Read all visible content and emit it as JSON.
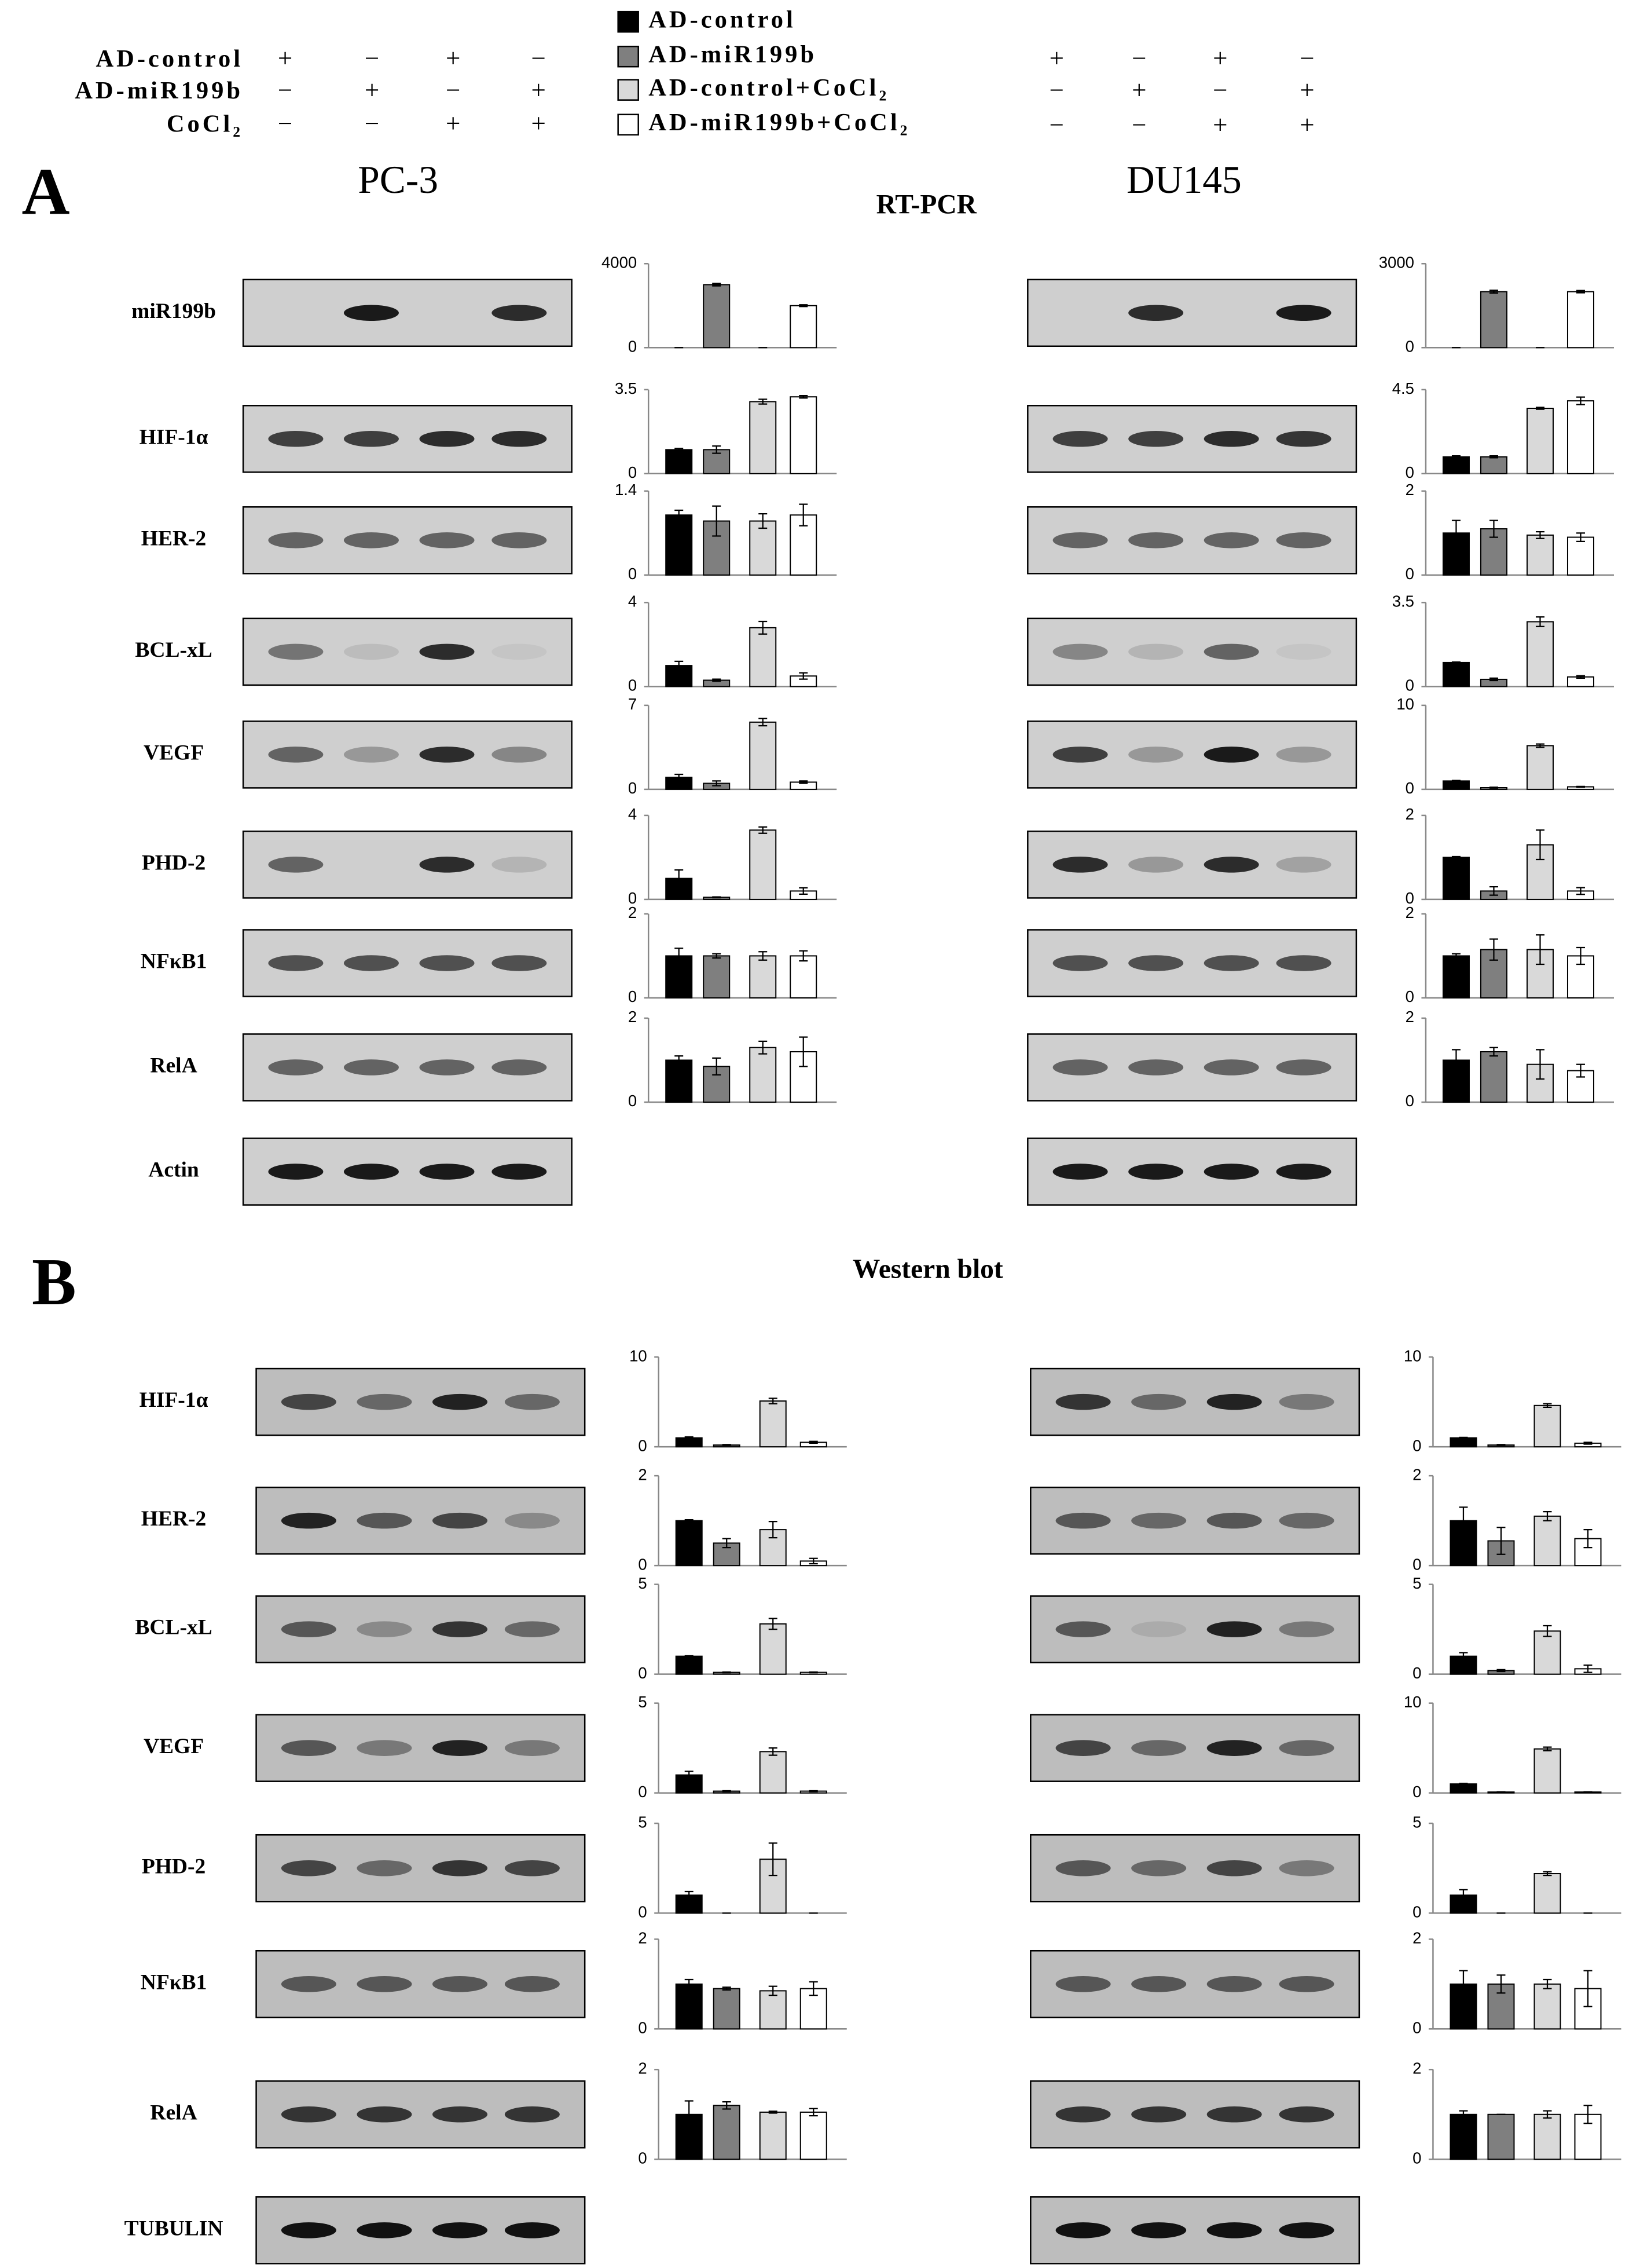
{
  "legend": {
    "entries": [
      {
        "name": "AD-control",
        "color": "#000000"
      },
      {
        "name": "AD-miR199b",
        "color": "#7f7f7f"
      },
      {
        "name": "AD-control+CoCl₂",
        "color": "#d9d9d9"
      },
      {
        "name": "AD-miR199b+CoCl₂",
        "color": "#ffffff"
      }
    ]
  },
  "treatments": {
    "rows": [
      {
        "label": "AD-control",
        "signs": [
          "+",
          "−",
          "+",
          "−"
        ]
      },
      {
        "label": "AD-miR199b",
        "signs": [
          "−",
          "+",
          "−",
          "+"
        ]
      },
      {
        "label": "CoCl₂",
        "signs": [
          "−",
          "−",
          "+",
          "+"
        ]
      }
    ]
  },
  "cell_lines": [
    "PC-3",
    "DU145"
  ],
  "panels": [
    {
      "letter": "A",
      "title": "RT-PCR",
      "rows": [
        "miR199b",
        "HIF-1α",
        "HER-2",
        "BCL-xL",
        "VEGF",
        "PHD-2",
        "NFκB1",
        "RelA",
        "Actin"
      ]
    },
    {
      "letter": "B",
      "title": "Western blot",
      "rows": [
        "HIF-1α",
        "HER-2",
        "BCL-xL",
        "VEGF",
        "PHD-2",
        "NFκB1",
        "RelA",
        "TUBULIN"
      ]
    }
  ],
  "chart_data": [
    {
      "type": "bar",
      "values": [
        0,
        3000,
        0,
        2000
      ],
      "errors": [
        0,
        60,
        0,
        40
      ],
      "ylim": [
        0,
        4000
      ],
      "yticks": [
        0,
        4000
      ]
    },
    {
      "type": "bar",
      "values": [
        0,
        2000,
        0,
        2000
      ],
      "errors": [
        0,
        50,
        0,
        40
      ],
      "ylim": [
        0,
        3000
      ],
      "yticks": [
        0,
        3000
      ]
    },
    {
      "type": "bar",
      "values": [
        1.0,
        1.0,
        3.0,
        3.2
      ],
      "errors": [
        0.05,
        0.15,
        0.1,
        0.05
      ],
      "ylim": [
        0,
        3.5
      ],
      "yticks": [
        0,
        3.5
      ]
    },
    {
      "type": "bar",
      "values": [
        0.9,
        0.9,
        3.5,
        3.9
      ],
      "errors": [
        0.05,
        0.05,
        0.05,
        0.2
      ],
      "ylim": [
        0,
        4.5
      ],
      "yticks": [
        0,
        4.5
      ]
    },
    {
      "type": "bar",
      "values": [
        1.0,
        0.9,
        0.9,
        1.0
      ],
      "errors": [
        0.08,
        0.25,
        0.12,
        0.18
      ],
      "ylim": [
        0,
        1.4
      ],
      "yticks": [
        0,
        1.4
      ]
    },
    {
      "type": "bar",
      "values": [
        1.0,
        1.1,
        0.95,
        0.9
      ],
      "errors": [
        0.3,
        0.2,
        0.08,
        0.1
      ],
      "ylim": [
        0,
        2
      ],
      "yticks": [
        0,
        2
      ]
    },
    {
      "type": "bar",
      "values": [
        1.0,
        0.3,
        2.8,
        0.5
      ],
      "errors": [
        0.2,
        0.05,
        0.3,
        0.15
      ],
      "ylim": [
        0,
        4
      ],
      "yticks": [
        0,
        4
      ]
    },
    {
      "type": "bar",
      "values": [
        1.0,
        0.3,
        2.7,
        0.4
      ],
      "errors": [
        0.02,
        0.05,
        0.2,
        0.05
      ],
      "ylim": [
        0,
        3.5
      ],
      "yticks": [
        0,
        3.5
      ]
    },
    {
      "type": "bar",
      "values": [
        1.0,
        0.5,
        5.6,
        0.6
      ],
      "errors": [
        0.25,
        0.2,
        0.3,
        0.1
      ],
      "ylim": [
        0,
        7
      ],
      "yticks": [
        0,
        7
      ]
    },
    {
      "type": "bar",
      "values": [
        1.0,
        0.2,
        5.2,
        0.3
      ],
      "errors": [
        0.05,
        0.05,
        0.2,
        0.05
      ],
      "ylim": [
        0,
        10
      ],
      "yticks": [
        0,
        10
      ]
    },
    {
      "type": "bar",
      "values": [
        1.0,
        0.1,
        3.3,
        0.4
      ],
      "errors": [
        0.4,
        0.02,
        0.15,
        0.15
      ],
      "ylim": [
        0,
        4
      ],
      "yticks": [
        0,
        4
      ]
    },
    {
      "type": "bar",
      "values": [
        1.0,
        0.2,
        1.3,
        0.2
      ],
      "errors": [
        0.02,
        0.1,
        0.35,
        0.08
      ],
      "ylim": [
        0,
        2
      ],
      "yticks": [
        0,
        2
      ]
    },
    {
      "type": "bar",
      "values": [
        1.0,
        1.0,
        1.0,
        1.0
      ],
      "errors": [
        0.18,
        0.05,
        0.1,
        0.12
      ],
      "ylim": [
        0,
        2
      ],
      "yticks": [
        0,
        2
      ]
    },
    {
      "type": "bar",
      "values": [
        1.0,
        1.15,
        1.15,
        1.0
      ],
      "errors": [
        0.05,
        0.25,
        0.35,
        0.2
      ],
      "ylim": [
        0,
        2
      ],
      "yticks": [
        0,
        2
      ]
    },
    {
      "type": "bar",
      "values": [
        1.0,
        0.85,
        1.3,
        1.2
      ],
      "errors": [
        0.1,
        0.2,
        0.15,
        0.35
      ],
      "ylim": [
        0,
        2
      ],
      "yticks": [
        0,
        2
      ]
    },
    {
      "type": "bar",
      "values": [
        1.0,
        1.2,
        0.9,
        0.75
      ],
      "errors": [
        0.25,
        0.1,
        0.35,
        0.15
      ],
      "ylim": [
        0,
        2
      ],
      "yticks": [
        0,
        2
      ]
    },
    {
      "type": "bar",
      "values": [
        1.0,
        0.2,
        5.1,
        0.5
      ],
      "errors": [
        0.1,
        0.05,
        0.3,
        0.1
      ],
      "ylim": [
        0,
        10
      ],
      "yticks": [
        0,
        10
      ]
    },
    {
      "type": "bar",
      "values": [
        1.0,
        0.2,
        4.6,
        0.4
      ],
      "errors": [
        0.05,
        0.05,
        0.2,
        0.1
      ],
      "ylim": [
        0,
        10
      ],
      "yticks": [
        0,
        10
      ]
    },
    {
      "type": "bar",
      "values": [
        1.0,
        0.5,
        0.8,
        0.1
      ],
      "errors": [
        0.02,
        0.1,
        0.18,
        0.06
      ],
      "ylim": [
        0,
        2
      ],
      "yticks": [
        0,
        2
      ]
    },
    {
      "type": "bar",
      "values": [
        1.0,
        0.55,
        1.1,
        0.6
      ],
      "errors": [
        0.3,
        0.3,
        0.1,
        0.2
      ],
      "ylim": [
        0,
        2
      ],
      "yticks": [
        0,
        2
      ]
    },
    {
      "type": "bar",
      "values": [
        1.0,
        0.1,
        2.8,
        0.1
      ],
      "errors": [
        0.02,
        0.02,
        0.3,
        0.02
      ],
      "ylim": [
        0,
        5
      ],
      "yticks": [
        0,
        5
      ]
    },
    {
      "type": "bar",
      "values": [
        1.0,
        0.2,
        2.4,
        0.3
      ],
      "errors": [
        0.2,
        0.05,
        0.3,
        0.2
      ],
      "ylim": [
        0,
        5
      ],
      "yticks": [
        0,
        5
      ]
    },
    {
      "type": "bar",
      "values": [
        1.0,
        0.1,
        2.3,
        0.1
      ],
      "errors": [
        0.2,
        0.02,
        0.2,
        0.02
      ],
      "ylim": [
        0,
        5
      ],
      "yticks": [
        0,
        5
      ]
    },
    {
      "type": "bar",
      "values": [
        1.0,
        0.1,
        4.9,
        0.1
      ],
      "errors": [
        0.05,
        0.02,
        0.2,
        0.02
      ],
      "ylim": [
        0,
        10
      ],
      "yticks": [
        0,
        10
      ]
    },
    {
      "type": "bar",
      "values": [
        1.0,
        0,
        3.0,
        0
      ],
      "errors": [
        0.2,
        0,
        0.9,
        0
      ],
      "ylim": [
        0,
        5
      ],
      "yticks": [
        0,
        5
      ]
    },
    {
      "type": "bar",
      "values": [
        1.0,
        0,
        2.2,
        0
      ],
      "errors": [
        0.3,
        0,
        0.1,
        0
      ],
      "ylim": [
        0,
        5
      ],
      "yticks": [
        0,
        5
      ]
    },
    {
      "type": "bar",
      "values": [
        1.0,
        0.9,
        0.85,
        0.9
      ],
      "errors": [
        0.1,
        0.03,
        0.1,
        0.15
      ],
      "ylim": [
        0,
        2
      ],
      "yticks": [
        0,
        2
      ]
    },
    {
      "type": "bar",
      "values": [
        1.0,
        1.0,
        1.0,
        0.9
      ],
      "errors": [
        0.3,
        0.2,
        0.1,
        0.4
      ],
      "ylim": [
        0,
        2
      ],
      "yticks": [
        0,
        2
      ]
    },
    {
      "type": "bar",
      "values": [
        1.0,
        1.2,
        1.05,
        1.05
      ],
      "errors": [
        0.3,
        0.08,
        0.02,
        0.08
      ],
      "ylim": [
        0,
        2
      ],
      "yticks": [
        0,
        2
      ]
    },
    {
      "type": "bar",
      "values": [
        1.0,
        1.0,
        1.0,
        1.0
      ],
      "errors": [
        0.08,
        0,
        0.08,
        0.2
      ],
      "ylim": [
        0,
        2
      ],
      "yticks": [
        0,
        2
      ]
    }
  ]
}
